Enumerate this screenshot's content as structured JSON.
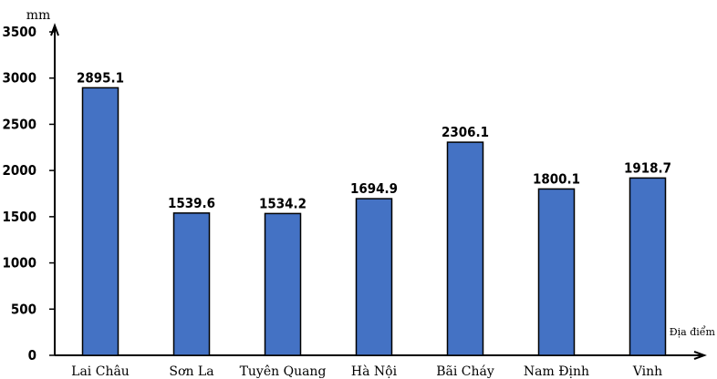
{
  "chart_data": {
    "type": "bar",
    "ylabel": "mm",
    "xlabel": "Địa điểm",
    "categories": [
      "Lai Châu",
      "Sơn La",
      "Tuyên Quang",
      "Hà Nội",
      "Bãi Cháy",
      "Nam Định",
      "Vinh"
    ],
    "values": [
      2895.1,
      1539.6,
      1534.2,
      1694.9,
      2306.1,
      1800.1,
      1918.7
    ],
    "value_labels": [
      "2895.1",
      "1539.6",
      "1534.2",
      "1694.9",
      "2306.1",
      "1800.1",
      "1918.7"
    ],
    "ylim": [
      0,
      3500
    ],
    "yticks": [
      0,
      500,
      1000,
      1500,
      2000,
      2500,
      3000,
      3500
    ],
    "grid": false,
    "bar_color": "#4472C4",
    "bar_edge_color": "#000000"
  }
}
